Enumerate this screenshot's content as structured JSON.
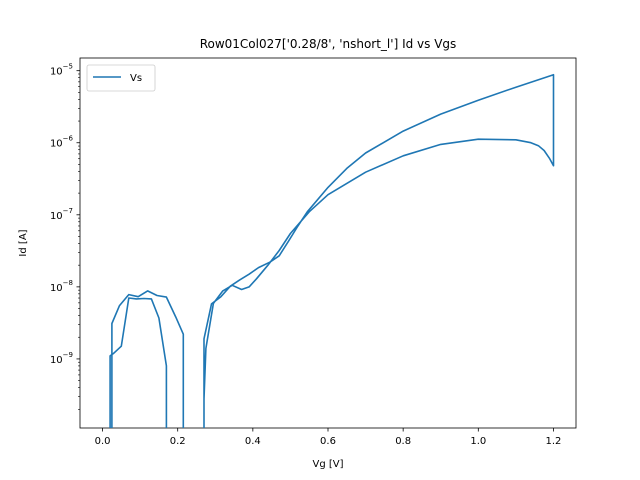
{
  "chart_data": {
    "type": "line",
    "title": "Row01Col027['0.28/8', 'nshort_l'] Id vs Vgs",
    "xlabel": "Vg [V]",
    "ylabel": "Id [A]",
    "xlim": [
      -0.06,
      1.26
    ],
    "ylim": [
      1.1e-10,
      1.5e-05
    ],
    "yscale": "log",
    "grid": false,
    "legend_position": "top-left",
    "x_ticks": [
      0.0,
      0.2,
      0.4,
      0.6,
      0.8,
      1.0,
      1.2
    ],
    "x_tick_labels": [
      "0.0",
      "0.2",
      "0.4",
      "0.6",
      "0.8",
      "1.0",
      "1.2"
    ],
    "y_ticks": [
      1e-09,
      1e-08,
      1e-07,
      1e-06,
      1e-05
    ],
    "y_tick_labels": [
      {
        "base": "10",
        "exp": "−9"
      },
      {
        "base": "10",
        "exp": "−8"
      },
      {
        "base": "10",
        "exp": "−7"
      },
      {
        "base": "10",
        "exp": "−6"
      },
      {
        "base": "10",
        "exp": "−5"
      }
    ],
    "series": [
      {
        "name": "Vs",
        "color": "#1f77b4",
        "x": [
          0.025,
          0.025,
          0.045,
          0.07,
          0.095,
          0.12,
          0.145,
          0.17,
          0.195,
          0.215,
          0.215,
          null,
          0.27,
          0.27,
          0.29,
          0.315,
          0.34,
          0.365,
          0.39,
          0.415,
          0.445,
          0.47,
          0.495,
          0.52,
          0.545,
          0.6,
          0.65,
          0.7,
          0.8,
          0.9,
          1.0,
          1.1,
          1.2,
          1.2,
          1.19,
          1.175,
          1.16,
          1.14,
          1.1,
          1.0,
          0.9,
          0.8,
          0.7,
          0.6,
          0.55,
          0.5,
          0.47,
          0.44,
          0.41,
          0.39,
          0.37,
          0.345,
          0.32,
          0.295,
          0.275,
          0.27,
          0.27,
          null,
          0.17,
          0.17,
          0.15,
          0.13,
          0.11,
          0.09,
          0.07,
          0.05,
          0.03,
          0.02,
          0.02
        ],
        "y": [
          1.1e-10,
          3.1e-09,
          5.5e-09,
          7.8e-09,
          7.3e-09,
          8.8e-09,
          7.6e-09,
          7.2e-09,
          3.8e-09,
          2.2e-09,
          1.1e-10,
          null,
          1.1e-10,
          1.9e-09,
          5.8e-09,
          7.3e-09,
          1.02e-08,
          1.25e-08,
          1.5e-08,
          1.85e-08,
          2.2e-08,
          2.7e-08,
          4.3e-08,
          7e-08,
          1.1e-07,
          2.4e-07,
          4.4e-07,
          7.2e-07,
          1.45e-06,
          2.5e-06,
          3.9e-06,
          5.9e-06,
          8.8e-06,
          4.8e-07,
          6e-07,
          7.8e-07,
          9.1e-07,
          1e-06,
          1.1e-06,
          1.12e-06,
          9.5e-07,
          6.6e-07,
          3.9e-07,
          1.9e-07,
          1.1e-07,
          5.5e-08,
          3.2e-08,
          2e-08,
          1.3e-08,
          1e-08,
          9.2e-09,
          1.05e-08,
          8.8e-09,
          5.9e-09,
          1.4e-09,
          2.8e-10,
          1.1e-10,
          null,
          1.1e-10,
          8e-10,
          3.7e-09,
          6.8e-09,
          6.9e-09,
          6.8e-09,
          7e-09,
          1.5e-09,
          1.2e-09,
          1.1e-09,
          1.1e-10
        ]
      }
    ]
  }
}
